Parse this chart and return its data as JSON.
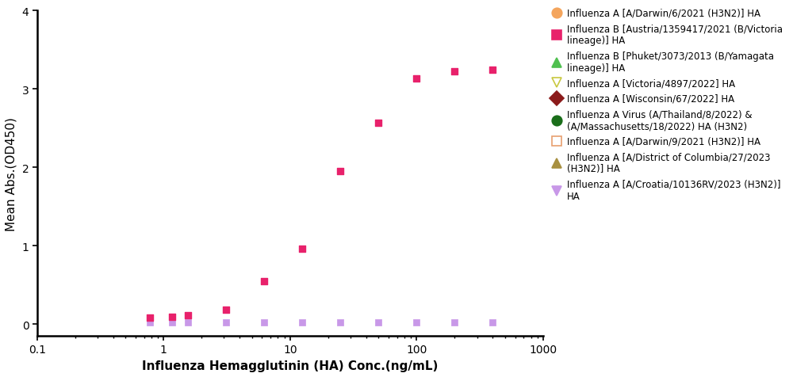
{
  "xlabel": "Influenza Hemagglutinin (HA) Conc.(ng/mL)",
  "ylabel": "Mean Abs.(OD450)",
  "xlim_log": [
    0.1,
    1000
  ],
  "ylim": [
    -0.15,
    4.0
  ],
  "yticks": [
    0,
    1,
    2,
    3,
    4
  ],
  "main_color": "#E8216B",
  "main_x": [
    0.78,
    1.17,
    1.56,
    3.13,
    6.25,
    12.5,
    25,
    50,
    100,
    200,
    400
  ],
  "main_y": [
    0.08,
    0.09,
    0.11,
    0.18,
    0.55,
    0.96,
    1.95,
    2.57,
    3.13,
    3.22,
    3.25
  ],
  "flat_x": [
    0.78,
    1.17,
    1.56,
    3.13,
    6.25,
    12.5,
    25,
    50,
    100,
    200,
    400
  ],
  "flat_y": [
    0.02,
    0.02,
    0.02,
    0.02,
    0.02,
    0.02,
    0.02,
    0.02,
    0.02,
    0.02,
    0.02
  ],
  "flat_color": "#C898E8",
  "legend_entries": [
    {
      "label": "Influenza A [A/Darwin/6/2021 (H3N2)] HA",
      "color": "#F4A55D",
      "marker": "o",
      "filled": true,
      "mfc": "#F4A55D"
    },
    {
      "label": "Influenza B [Austria/1359417/2021 (B/Victoria\nlineage)] HA",
      "color": "#E8216B",
      "marker": "s",
      "filled": true,
      "mfc": "#E8216B"
    },
    {
      "label": "Influenza B [Phuket/3073/2013 (B/Yamagata\nlineage)] HA",
      "color": "#50C050",
      "marker": "^",
      "filled": true,
      "mfc": "#50C050"
    },
    {
      "label": "Influenza A [Victoria/4897/2022] HA",
      "color": "#C8C840",
      "marker": "v",
      "filled": false,
      "mfc": "none"
    },
    {
      "label": "Influenza A [Wisconsin/67/2022] HA",
      "color": "#8B1A1A",
      "marker": "D",
      "filled": true,
      "mfc": "#8B1A1A"
    },
    {
      "label": "Influenza A Virus (A/Thailand/8/2022) &\n(A/Massachusetts/18/2022) HA (H3N2)",
      "color": "#1A6E1A",
      "marker": "o",
      "filled": true,
      "mfc": "#1A6E1A"
    },
    {
      "label": "Influenza A [A/Darwin/9/2021 (H3N2)] HA",
      "color": "#E8A070",
      "marker": "s",
      "filled": false,
      "mfc": "none"
    },
    {
      "label": "Influenza A [A/District of Columbia/27/2023\n(H3N2)] HA",
      "color": "#A89040",
      "marker": "^",
      "filled": true,
      "mfc": "#A89040"
    },
    {
      "label": "Influenza A [A/Croatia/10136RV/2023 (H3N2)]\nHA",
      "color": "#C898E8",
      "marker": "v",
      "filled": true,
      "mfc": "#C898E8"
    }
  ],
  "background_color": "#ffffff",
  "figure_width": 10.0,
  "figure_height": 4.77
}
